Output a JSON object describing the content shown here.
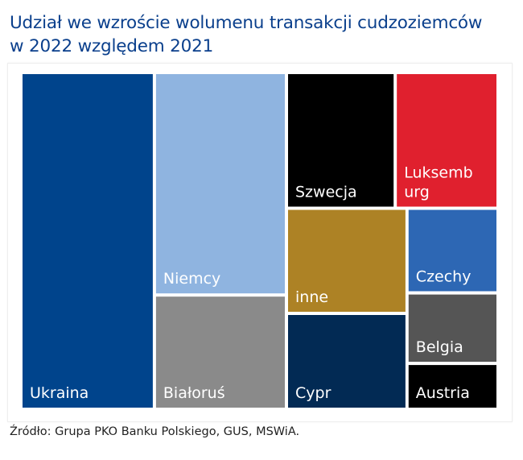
{
  "title_lines": [
    "Udział we wzroście wolumenu transakcji cudzoziemców",
    "w 2022 względem 2021"
  ],
  "source": "Źródło: Grupa PKO Banku Polskiego, GUS, MSWiA.",
  "chart_data": {
    "type": "treemap",
    "title": "Udział we wzroście wolumenu transakcji cudzoziemców w 2022 względem 2021",
    "unit": "relative share (estimated from tile areas, %)",
    "legend": "none",
    "axes": "none",
    "items": [
      {
        "label": "Ukraina",
        "value": 28.0,
        "color": "#00448c"
      },
      {
        "label": "Niemcy",
        "value": 18.3,
        "color": "#8fb4e0"
      },
      {
        "label": "Białoruś",
        "value": 9.4,
        "color": "#8a8a8a"
      },
      {
        "label": "Szwecja",
        "value": 9.2,
        "color": "#000000"
      },
      {
        "label": "Luksemb urg",
        "value": 8.7,
        "color": "#e0202e"
      },
      {
        "label": "inne",
        "value": 7.9,
        "color": "#ad8225"
      },
      {
        "label": "Cypr",
        "value": 7.2,
        "color": "#022a54"
      },
      {
        "label": "Czechy",
        "value": 4.8,
        "color": "#2d67b4"
      },
      {
        "label": "Belgia",
        "value": 4.0,
        "color": "#555555"
      },
      {
        "label": "Austria",
        "value": 2.6,
        "color": "#000000"
      }
    ]
  }
}
